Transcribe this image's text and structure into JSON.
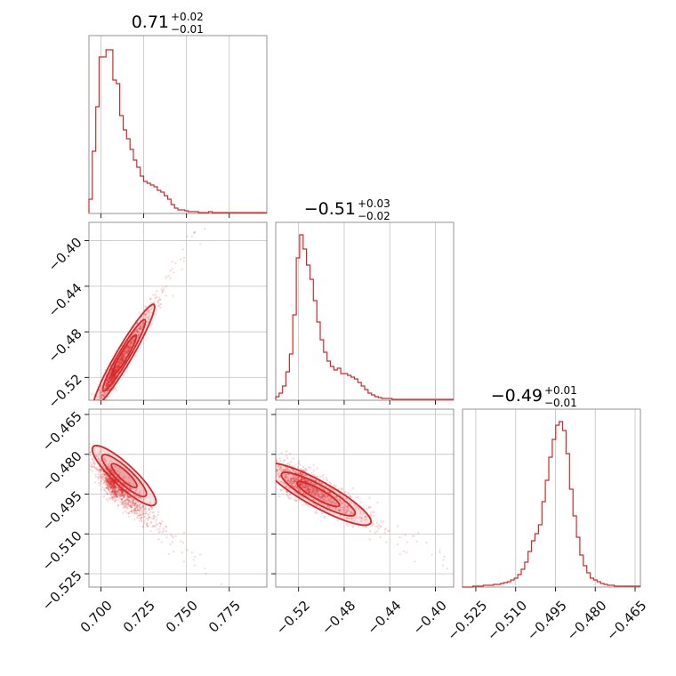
{
  "chart_data": {
    "type": "corner",
    "color": "#d62728",
    "grid": true,
    "parameters": [
      {
        "title": {
          "value": "0.71",
          "plus": "+0.02",
          "minus": "−0.01"
        },
        "range": [
          0.693,
          0.797
        ],
        "ticks": [
          0.7,
          0.725,
          0.75,
          0.775
        ],
        "tick_labels": [
          "0.700",
          "0.725",
          "0.750",
          "0.775"
        ]
      },
      {
        "title": {
          "value": "−0.51",
          "plus": "+0.03",
          "minus": "−0.02"
        },
        "range": [
          -0.54,
          -0.384
        ],
        "ticks": [
          -0.52,
          -0.48,
          -0.44,
          -0.4
        ],
        "tick_labels": [
          "−0.52",
          "−0.48",
          "−0.44",
          "−0.40"
        ]
      },
      {
        "title": {
          "value": "−0.49",
          "plus": "+0.01",
          "minus": "−0.01"
        },
        "range": [
          -0.53,
          -0.463
        ],
        "ticks": [
          -0.525,
          -0.51,
          -0.495,
          -0.48,
          -0.465
        ],
        "tick_labels": [
          "−0.525",
          "−0.510",
          "−0.495",
          "−0.480",
          "−0.465"
        ]
      }
    ],
    "histograms": [
      {
        "bin_start": 0.693,
        "bin_width": 0.002,
        "counts": [
          0.08,
          0.35,
          0.6,
          0.88,
          0.88,
          0.92,
          0.92,
          0.75,
          0.73,
          0.55,
          0.47,
          0.42,
          0.36,
          0.3,
          0.26,
          0.21,
          0.18,
          0.17,
          0.16,
          0.15,
          0.13,
          0.12,
          0.1,
          0.08,
          0.05,
          0.03,
          0.02,
          0.02,
          0.015,
          0.01,
          0.01,
          0.01,
          0.005,
          0.005,
          0.005,
          0.01,
          0.005,
          0.005,
          0.005,
          0.005,
          0.005,
          0.005,
          0.005,
          0.005,
          0.005,
          0.005,
          0.005,
          0.005,
          0.005,
          0.005,
          0.005,
          0.005
        ]
      },
      {
        "bin_start": -0.54,
        "bin_width": 0.003,
        "counts": [
          0.02,
          0.04,
          0.08,
          0.16,
          0.26,
          0.48,
          0.8,
          0.93,
          0.85,
          0.76,
          0.68,
          0.56,
          0.44,
          0.34,
          0.27,
          0.22,
          0.19,
          0.17,
          0.18,
          0.15,
          0.15,
          0.14,
          0.13,
          0.12,
          0.1,
          0.08,
          0.06,
          0.04,
          0.03,
          0.02,
          0.015,
          0.01,
          0.01,
          0.01,
          0.005,
          0.005,
          0.005,
          0.005,
          0.005,
          0.005,
          0.005,
          0.005,
          0.005,
          0.005,
          0.005,
          0.005,
          0.005,
          0.005,
          0.005,
          0.005,
          0.005,
          0.005
        ]
      },
      {
        "bin_start": -0.53,
        "bin_width": 0.0013,
        "counts": [
          0,
          0,
          0,
          0.005,
          0.005,
          0.005,
          0.01,
          0.01,
          0.01,
          0.015,
          0.015,
          0.02,
          0.025,
          0.03,
          0.04,
          0.05,
          0.07,
          0.1,
          0.14,
          0.2,
          0.26,
          0.3,
          0.35,
          0.48,
          0.6,
          0.73,
          0.83,
          0.91,
          0.93,
          0.88,
          0.75,
          0.55,
          0.4,
          0.28,
          0.18,
          0.12,
          0.08,
          0.05,
          0.04,
          0.03,
          0.02,
          0.015,
          0.01,
          0.01,
          0.005,
          0.005,
          0.005,
          0.005,
          0.005,
          0.005,
          0.005,
          0.005
        ]
      }
    ],
    "joint": {
      "x0": 0.7085,
      "x1": -0.514,
      "x2": -0.4915,
      "sigma": [
        0.0085,
        0.0225,
        0.0058
      ],
      "correlation": {
        "0-1": 0.97,
        "0-2": -0.88,
        "1-2": -0.92
      }
    }
  }
}
